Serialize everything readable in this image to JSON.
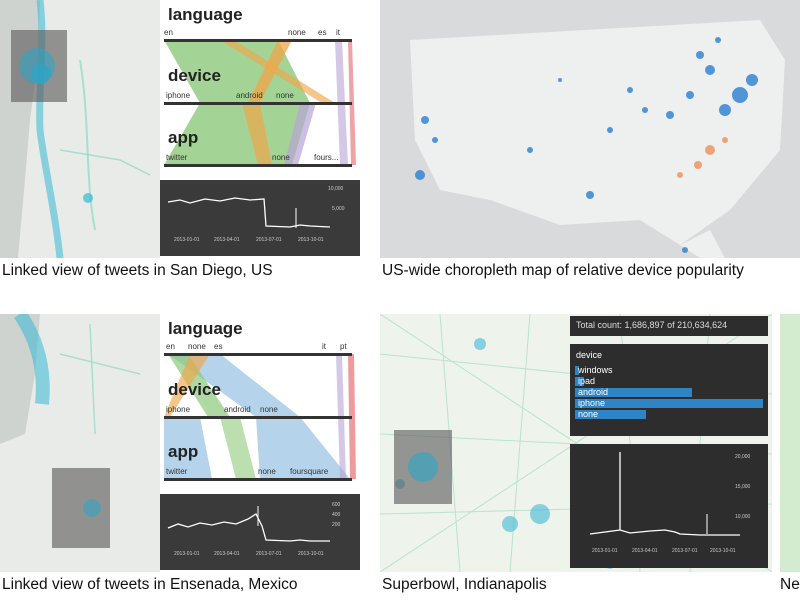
{
  "captions": {
    "p1": "Linked view of tweets in San Diego, US",
    "p2": "US-wide choropleth map of relative device popularity",
    "p3": "Linked view of tweets in Ensenada, Mexico",
    "p4": "Superbowl, Indianapolis",
    "p5": "Ne"
  },
  "parsets_top": {
    "dims": [
      {
        "title": "language",
        "cats": [
          "en",
          "none",
          "es",
          "it"
        ]
      },
      {
        "title": "device",
        "cats": [
          "iphone",
          "android",
          "none"
        ]
      },
      {
        "title": "app",
        "cats": [
          "twitter",
          "none",
          "fours..."
        ]
      }
    ],
    "timeline_ticks": [
      "2013-01-01",
      "2013-04-01",
      "2013-07-01",
      "2013-10-01"
    ],
    "timeline_y": [
      "10,000",
      "5,000"
    ]
  },
  "parsets_bottom": {
    "dims": [
      {
        "title": "language",
        "cats": [
          "en",
          "none",
          "es",
          "it",
          "pt"
        ]
      },
      {
        "title": "device",
        "cats": [
          "iphone",
          "android",
          "none"
        ]
      },
      {
        "title": "app",
        "cats": [
          "twitter",
          "none",
          "foursquare"
        ]
      }
    ],
    "timeline_ticks": [
      "2013-01-01",
      "2013-04-01",
      "2013-07-01",
      "2013-10-01"
    ],
    "timeline_y": [
      "600",
      "400",
      "200"
    ]
  },
  "superbowl": {
    "total": "Total count: 1,686,897 of 210,634,624",
    "histogram_title": "device",
    "devices": [
      {
        "label": "windows",
        "value": 0.02
      },
      {
        "label": "ipad",
        "value": 0.05
      },
      {
        "label": "android",
        "value": 0.62
      },
      {
        "label": "iphone",
        "value": 1.0
      },
      {
        "label": "none",
        "value": 0.38
      }
    ],
    "timeline_ticks": [
      "2013-01-01",
      "2013-04-01",
      "2013-07-01",
      "2013-10-01"
    ],
    "timeline_y": [
      "20,000",
      "15,000",
      "10,000"
    ]
  },
  "colors": {
    "accent_blue": "#2f84c6",
    "ribbon_green": "#8dc97a",
    "ribbon_orange": "#f0a64a",
    "ribbon_blue": "#9cc4e4",
    "ribbon_purple": "#b7a4d6",
    "ribbon_red": "#e5656a",
    "map_dot_blue": "#2a7fd0",
    "map_dot_orange": "#ef8a4d"
  }
}
